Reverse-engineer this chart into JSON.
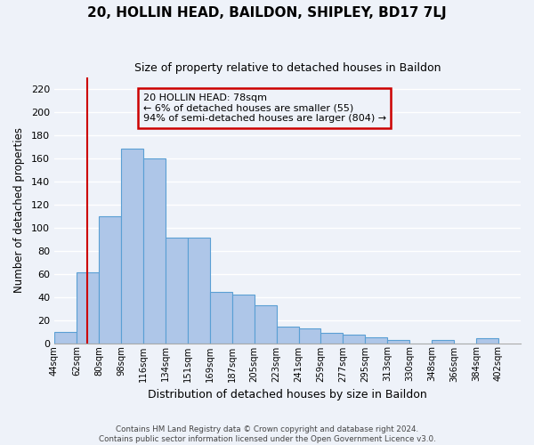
{
  "title": "20, HOLLIN HEAD, BAILDON, SHIPLEY, BD17 7LJ",
  "subtitle": "Size of property relative to detached houses in Baildon",
  "xlabel": "Distribution of detached houses by size in Baildon",
  "ylabel": "Number of detached properties",
  "bin_labels": [
    "44sqm",
    "62sqm",
    "80sqm",
    "98sqm",
    "116sqm",
    "134sqm",
    "151sqm",
    "169sqm",
    "187sqm",
    "205sqm",
    "223sqm",
    "241sqm",
    "259sqm",
    "277sqm",
    "295sqm",
    "313sqm",
    "330sqm",
    "348sqm",
    "366sqm",
    "384sqm",
    "402sqm"
  ],
  "bar_values": [
    10,
    61,
    110,
    168,
    160,
    91,
    91,
    44,
    42,
    33,
    14,
    13,
    9,
    7,
    5,
    3,
    0,
    3,
    0,
    4
  ],
  "bar_color": "#aec6e8",
  "bar_edge_color": "#5a9fd4",
  "vline_color": "#cc0000",
  "vline_position": 1.5,
  "annotation_title": "20 HOLLIN HEAD: 78sqm",
  "annotation_line1": "← 6% of detached houses are smaller (55)",
  "annotation_line2": "94% of semi-detached houses are larger (804) →",
  "annotation_box_edge_color": "#cc0000",
  "ylim": [
    0,
    230
  ],
  "yticks": [
    0,
    20,
    40,
    60,
    80,
    100,
    120,
    140,
    160,
    180,
    200,
    220
  ],
  "footer_line1": "Contains HM Land Registry data © Crown copyright and database right 2024.",
  "footer_line2": "Contains public sector information licensed under the Open Government Licence v3.0.",
  "bg_color": "#eef2f9",
  "grid_color": "#ffffff"
}
